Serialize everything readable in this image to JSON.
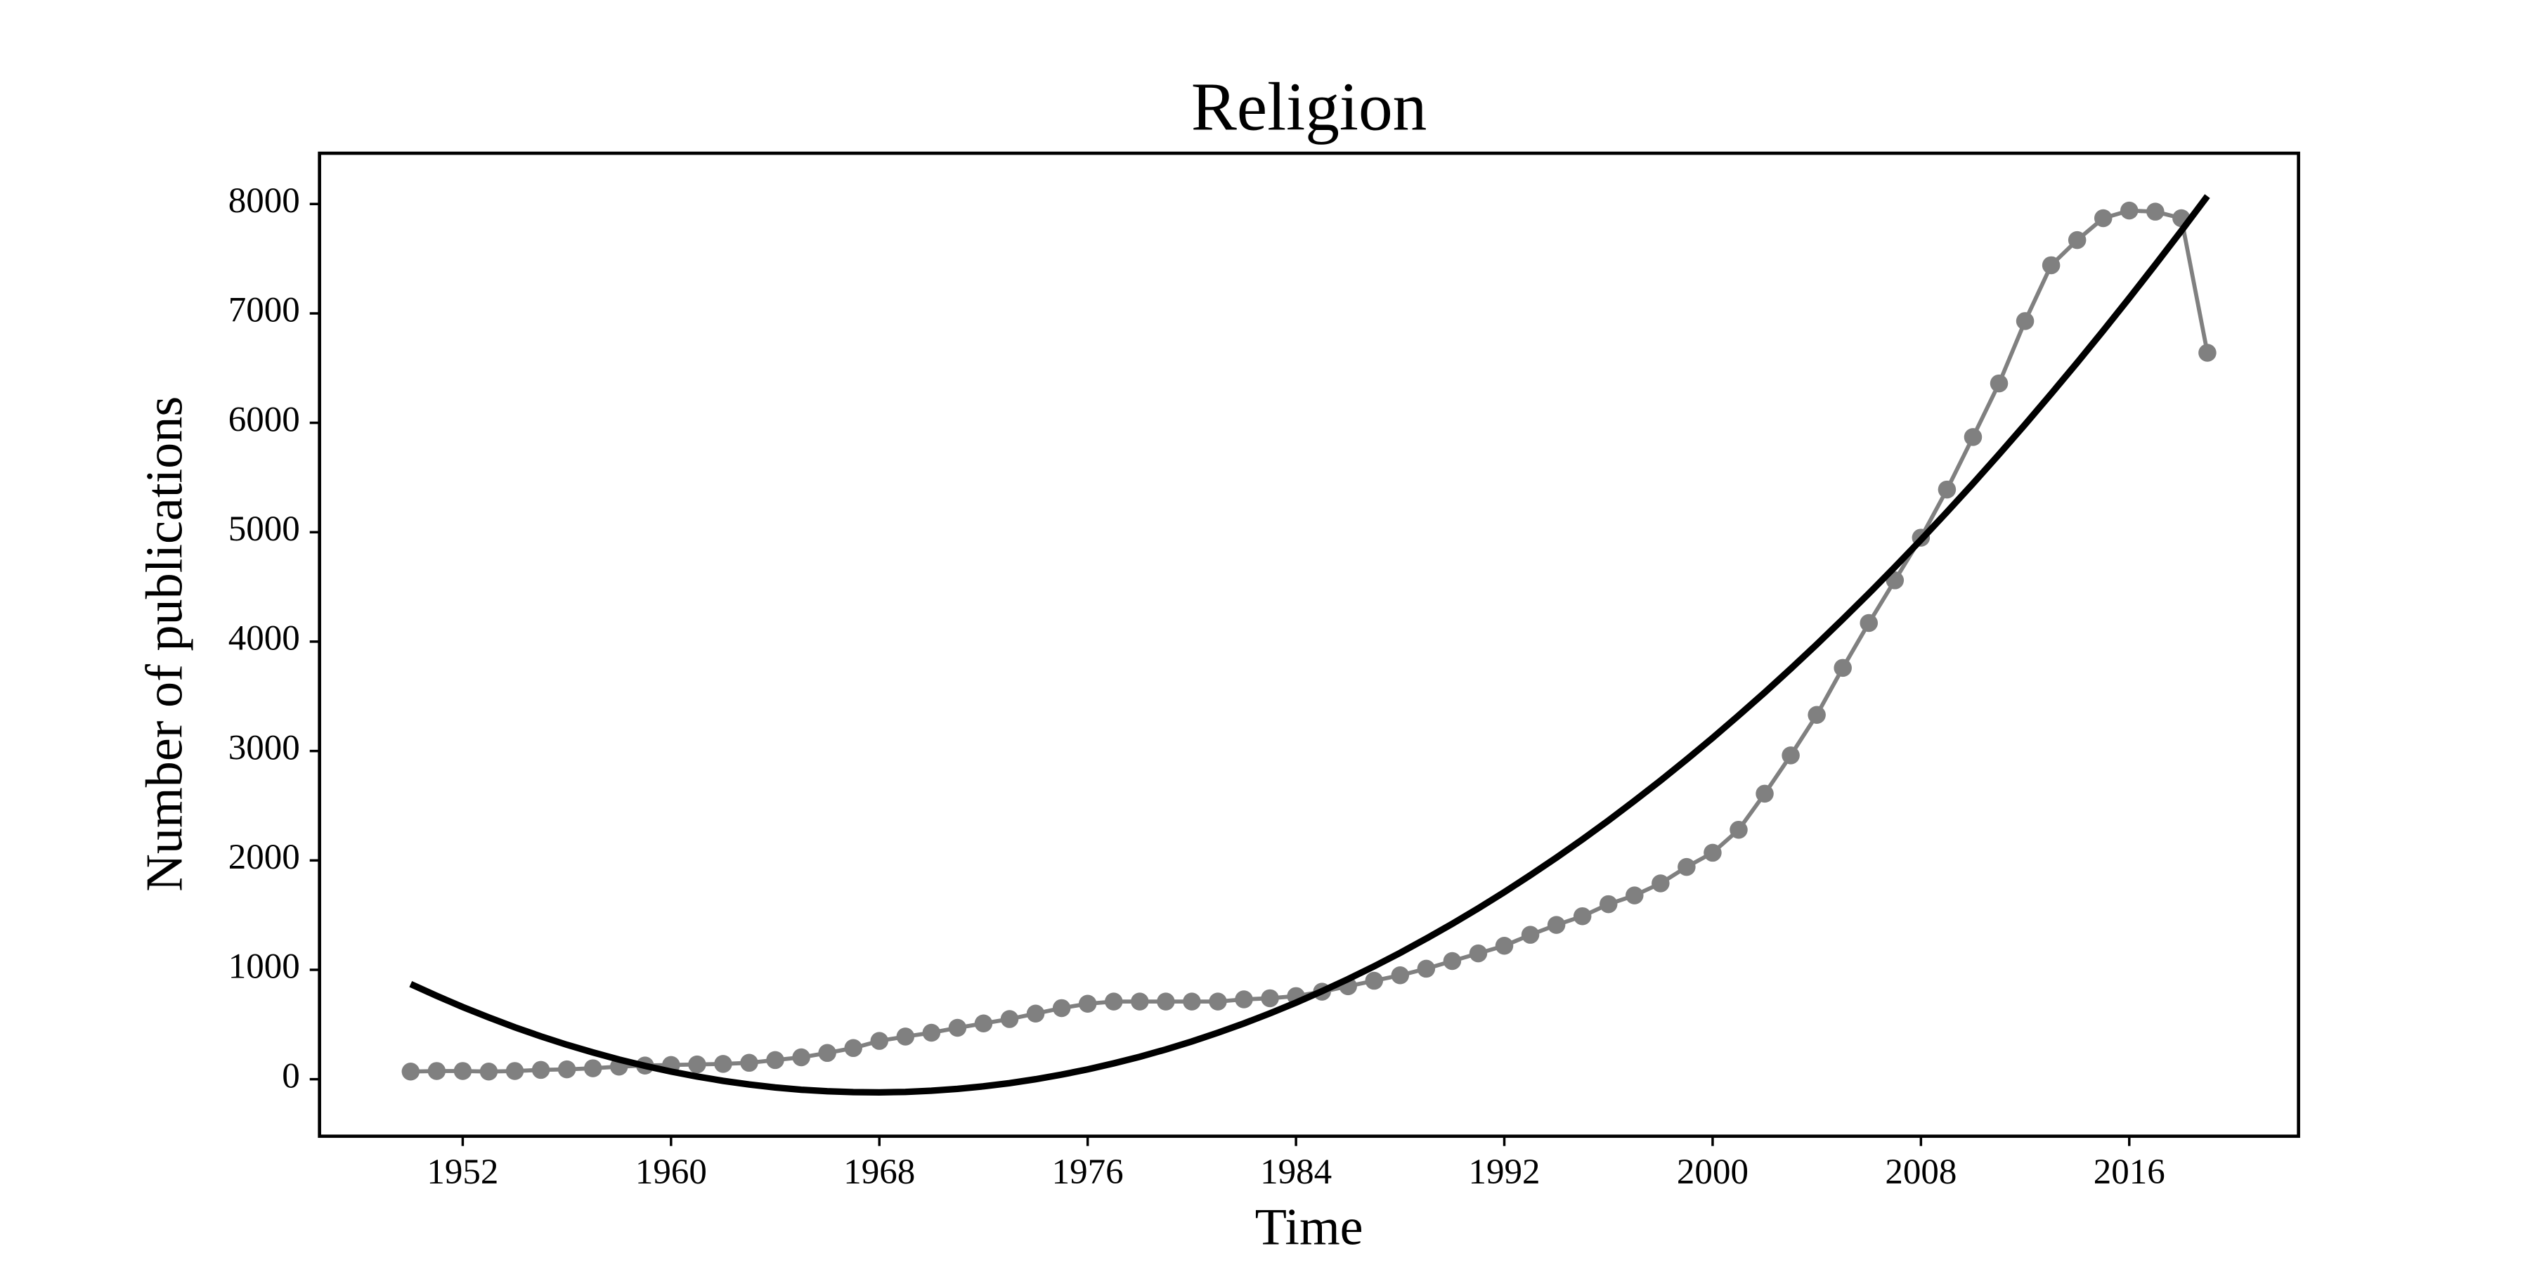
{
  "chart_data": {
    "type": "line",
    "title": "Religion",
    "xlabel": "Time",
    "ylabel": "Number of publications",
    "x": [
      1950,
      1951,
      1952,
      1953,
      1954,
      1955,
      1956,
      1957,
      1958,
      1959,
      1960,
      1961,
      1962,
      1963,
      1964,
      1965,
      1966,
      1967,
      1968,
      1969,
      1970,
      1971,
      1972,
      1973,
      1974,
      1975,
      1976,
      1977,
      1978,
      1979,
      1980,
      1981,
      1982,
      1983,
      1984,
      1985,
      1986,
      1987,
      1988,
      1989,
      1990,
      1991,
      1992,
      1993,
      1994,
      1995,
      1996,
      1997,
      1998,
      1999,
      2000,
      2001,
      2002,
      2003,
      2004,
      2005,
      2006,
      2007,
      2008,
      2009,
      2010,
      2011,
      2012,
      2013,
      2014,
      2015,
      2016,
      2017,
      2018,
      2019
    ],
    "series": [
      {
        "color": "#808080",
        "marker": "o",
        "values": [
          70,
          75,
          75,
          70,
          75,
          85,
          90,
          100,
          115,
          125,
          130,
          135,
          140,
          150,
          175,
          200,
          240,
          285,
          350,
          390,
          425,
          470,
          510,
          550,
          600,
          650,
          690,
          710,
          710,
          710,
          710,
          710,
          730,
          740,
          760,
          800,
          850,
          900,
          950,
          1010,
          1080,
          1150,
          1220,
          1320,
          1410,
          1490,
          1600,
          1680,
          1790,
          1940,
          2070,
          2280,
          2610,
          2960,
          3330,
          3760,
          4170,
          4560,
          4950,
          5390,
          5870,
          6360,
          6930,
          7440,
          7670,
          7870,
          7940,
          7930,
          7870,
          6640
        ]
      },
      {
        "color": "#000000",
        "marker": null,
        "values": [
          870,
          762,
          660,
          565,
          475,
          392,
          315,
          245,
          180,
          122,
          70,
          25,
          -15,
          -48,
          -75,
          -96,
          -110,
          -118,
          -120,
          -116,
          -105,
          -88,
          -65,
          -36,
          0,
          42,
          90,
          145,
          205,
          272,
          345,
          425,
          510,
          602,
          700,
          805,
          915,
          1032,
          1155,
          1285,
          1420,
          1562,
          1710,
          1865,
          2025,
          2192,
          2365,
          2545,
          2730,
          2922,
          3120,
          3325,
          3535,
          3752,
          3975,
          4205,
          4440,
          4682,
          4930,
          5185,
          5445,
          5712,
          5985,
          6265,
          6550,
          6842,
          7140,
          7445,
          7755,
          8072
        ]
      }
    ],
    "xlim": [
      1946.5,
      2022.5
    ],
    "ylim": [
      -521,
      8464
    ],
    "xticks": [
      1952,
      1960,
      1968,
      1976,
      1984,
      1992,
      2000,
      2008,
      2016
    ],
    "yticks": [
      0,
      1000,
      2000,
      3000,
      4000,
      5000,
      6000,
      7000,
      8000
    ],
    "grid": false
  }
}
